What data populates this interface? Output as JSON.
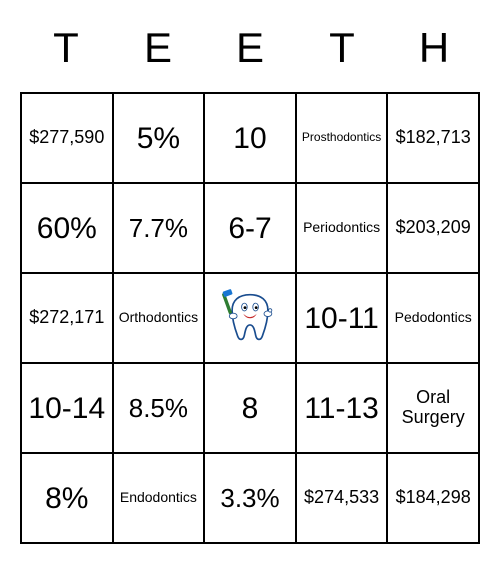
{
  "header": [
    "T",
    "E",
    "E",
    "T",
    "H"
  ],
  "grid": {
    "rows": [
      [
        {
          "text": "$277,590",
          "size": "md"
        },
        {
          "text": "5%",
          "size": "xl"
        },
        {
          "text": "10",
          "size": "xl"
        },
        {
          "text": "Prosthodontics",
          "size": "xs"
        },
        {
          "text": "$182,713",
          "size": "md"
        }
      ],
      [
        {
          "text": "60%",
          "size": "xl"
        },
        {
          "text": "7.7%",
          "size": "lg"
        },
        {
          "text": "6-7",
          "size": "xl"
        },
        {
          "text": "Periodontics",
          "size": "sm"
        },
        {
          "text": "$203,209",
          "size": "md"
        }
      ],
      [
        {
          "text": "$272,171",
          "size": "md"
        },
        {
          "text": "Orthodontics",
          "size": "sm"
        },
        {
          "text": "",
          "size": "icon"
        },
        {
          "text": "10-11",
          "size": "xl"
        },
        {
          "text": "Pedodontics",
          "size": "sm"
        }
      ],
      [
        {
          "text": "10-14",
          "size": "xl"
        },
        {
          "text": "8.5%",
          "size": "lg"
        },
        {
          "text": "8",
          "size": "xl"
        },
        {
          "text": "11-13",
          "size": "xl"
        },
        {
          "text": "Oral Surgery",
          "size": "md"
        }
      ],
      [
        {
          "text": "8%",
          "size": "xl"
        },
        {
          "text": "Endodontics",
          "size": "sm"
        },
        {
          "text": "3.3%",
          "size": "lg"
        },
        {
          "text": "$274,533",
          "size": "md"
        },
        {
          "text": "$184,298",
          "size": "md"
        }
      ]
    ]
  },
  "colors": {
    "background": "#ffffff",
    "text": "#000000",
    "border": "#000000",
    "tooth_body": "#ffffff",
    "tooth_outline": "#1a4d8f",
    "toothbrush_handle": "#2e7d32",
    "toothbrush_bristles": "#1976d2",
    "glove": "#ffffff",
    "eye": "#000000",
    "mouth": "#c62828"
  }
}
